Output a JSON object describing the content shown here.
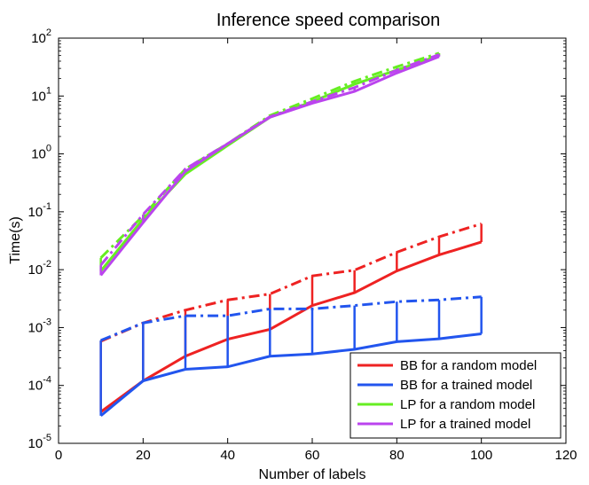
{
  "chart_data": {
    "type": "line",
    "title": "Inference speed comparison",
    "xlabel": "Number of labels",
    "ylabel": "Time(s)",
    "xlim": [
      0,
      120
    ],
    "xticks": [
      0,
      20,
      40,
      60,
      80,
      100,
      120
    ],
    "yscale": "log",
    "ylim_exp": [
      -5,
      2
    ],
    "ytick_base": "10",
    "ytick_exponents": [
      -5,
      -4,
      -3,
      -2,
      -1,
      0,
      1,
      2
    ],
    "grid": false,
    "legend_position": "bottom-right",
    "series": [
      {
        "name": "BB for a random model",
        "color": "#ee2222",
        "x": [
          10,
          20,
          30,
          40,
          50,
          60,
          70,
          80,
          90,
          100
        ],
        "mean": [
          3.5e-05,
          0.00012,
          0.00032,
          0.00063,
          0.00093,
          0.0024,
          0.004,
          0.0095,
          0.018,
          0.03
        ],
        "upper": [
          0.00058,
          0.0012,
          0.002,
          0.003,
          0.0038,
          0.0078,
          0.0098,
          0.02,
          0.037,
          0.062
        ]
      },
      {
        "name": "BB for a trained model",
        "color": "#2255ee",
        "x": [
          10,
          20,
          30,
          40,
          50,
          60,
          70,
          80,
          90,
          100
        ],
        "mean": [
          3e-05,
          0.00012,
          0.00019,
          0.00021,
          0.00032,
          0.00035,
          0.00042,
          0.00057,
          0.00064,
          0.00078
        ],
        "upper": [
          0.0006,
          0.0012,
          0.0016,
          0.0016,
          0.0021,
          0.0021,
          0.0024,
          0.0028,
          0.003,
          0.0034
        ]
      },
      {
        "name": "LP for a random model",
        "color": "#66ee22",
        "x": [
          10,
          20,
          30,
          40,
          50,
          60,
          70,
          80,
          90
        ],
        "mean": [
          0.0095,
          0.075,
          0.45,
          1.4,
          4.3,
          8.0,
          16.0,
          28.0,
          50.0
        ],
        "upper": [
          0.016,
          0.085,
          0.55,
          1.5,
          4.6,
          9.0,
          18.0,
          32.0,
          55.0
        ]
      },
      {
        "name": "LP for a trained model",
        "color": "#bb44ee",
        "x": [
          10,
          20,
          30,
          40,
          50,
          60,
          70,
          80,
          90
        ],
        "mean": [
          0.008,
          0.065,
          0.5,
          1.5,
          4.3,
          7.5,
          12.0,
          25.0,
          48.0
        ],
        "upper": [
          0.012,
          0.09,
          0.55,
          1.5,
          4.4,
          8.0,
          14.0,
          28.0,
          52.0
        ]
      }
    ]
  }
}
